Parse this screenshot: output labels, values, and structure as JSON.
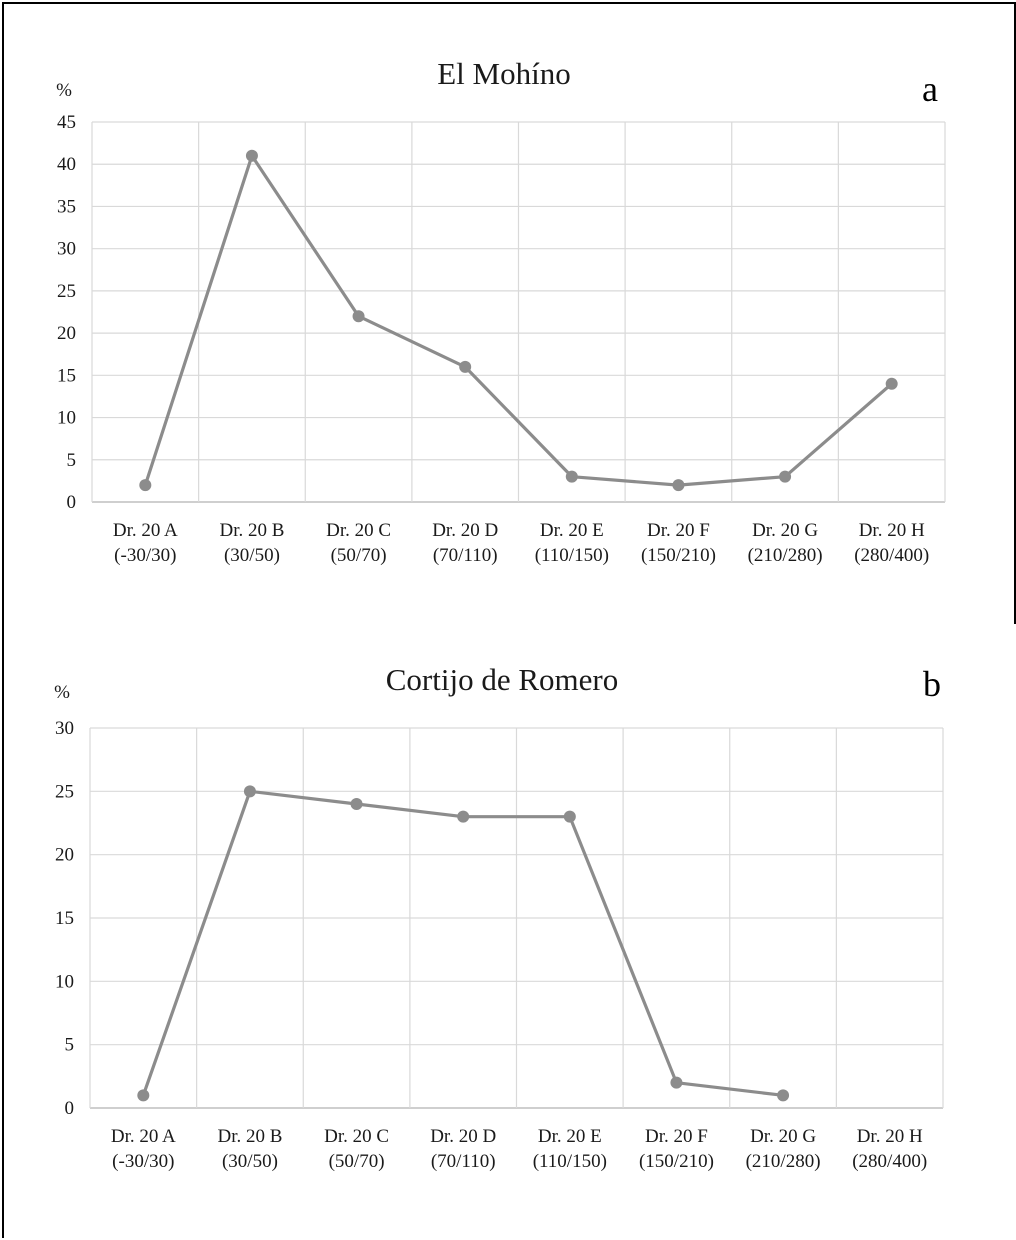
{
  "chart_data": [
    {
      "type": "line",
      "panel_label": "a",
      "title": "El Mohíno",
      "ylabel": "%",
      "xlabel": "",
      "ylim": [
        0,
        45
      ],
      "yticks": [
        0,
        5,
        10,
        15,
        20,
        25,
        30,
        35,
        40,
        45
      ],
      "grid": true,
      "categories": [
        [
          "Dr. 20 A",
          "(-30/30)"
        ],
        [
          "Dr. 20 B",
          "(30/50)"
        ],
        [
          "Dr. 20 C",
          "(50/70)"
        ],
        [
          "Dr. 20 D",
          "(70/110)"
        ],
        [
          "Dr. 20 E",
          "(110/150)"
        ],
        [
          "Dr. 20 F",
          "(150/210)"
        ],
        [
          "Dr. 20 G",
          "(210/280)"
        ],
        [
          "Dr. 20 H",
          "(280/400)"
        ]
      ],
      "values": [
        2,
        41,
        22,
        16,
        3,
        2,
        3,
        14
      ],
      "color": "#8c8c8c"
    },
    {
      "type": "line",
      "panel_label": "b",
      "title": "Cortijo de Romero",
      "ylabel": "%",
      "xlabel": "",
      "ylim": [
        0,
        30
      ],
      "yticks": [
        0,
        5,
        10,
        15,
        20,
        25,
        30
      ],
      "grid": true,
      "categories": [
        [
          "Dr. 20 A",
          "(-30/30)"
        ],
        [
          "Dr. 20 B",
          "(30/50)"
        ],
        [
          "Dr. 20 C",
          "(50/70)"
        ],
        [
          "Dr. 20 D",
          "(70/110)"
        ],
        [
          "Dr. 20 E",
          "(110/150)"
        ],
        [
          "Dr. 20 F",
          "(150/210)"
        ],
        [
          "Dr. 20 G",
          "(210/280)"
        ],
        [
          "Dr. 20 H",
          "(280/400)"
        ]
      ],
      "values": [
        1,
        25,
        24,
        23,
        23,
        2,
        1,
        null
      ],
      "color": "#8c8c8c"
    }
  ]
}
